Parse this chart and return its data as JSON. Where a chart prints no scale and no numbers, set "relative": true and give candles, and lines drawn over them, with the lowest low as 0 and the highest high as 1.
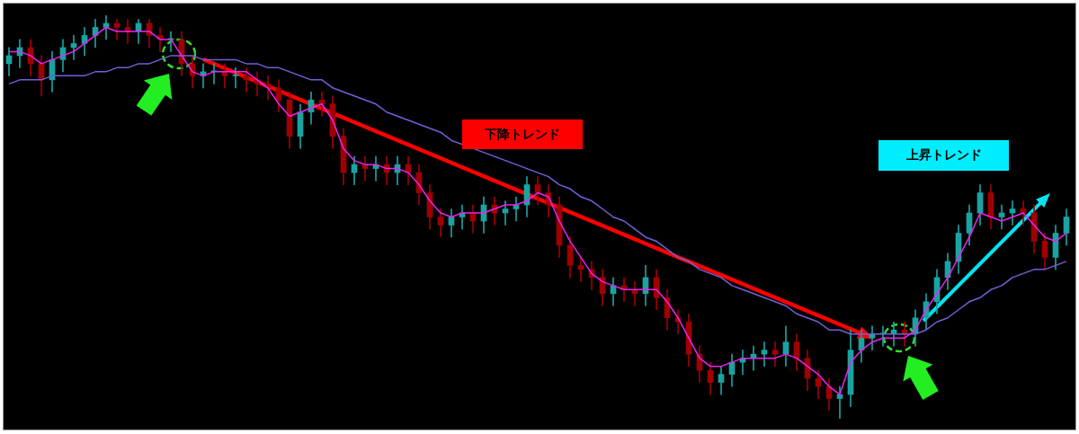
{
  "chart_data": {
    "type": "candlestick",
    "relative": true,
    "categories": [
      null,
      null,
      null,
      null,
      null,
      null,
      null,
      null,
      null,
      null,
      null,
      null,
      null,
      null,
      null,
      null,
      null,
      null,
      null,
      null,
      null,
      null,
      null,
      null,
      null,
      null,
      null,
      null,
      null,
      null,
      null,
      null,
      null,
      null,
      null,
      null,
      null,
      null,
      null,
      null,
      null,
      null,
      null,
      null,
      null,
      null,
      null,
      null,
      null,
      null,
      null,
      null,
      null,
      null,
      null,
      null,
      null,
      null,
      null,
      null,
      null,
      null,
      null,
      null,
      null,
      null,
      null,
      null,
      null,
      null,
      null,
      null,
      null,
      null,
      null,
      null,
      null,
      null,
      null,
      null,
      null,
      null,
      null,
      null,
      null,
      null,
      null,
      null,
      null,
      null,
      null,
      null,
      null,
      null,
      null,
      null,
      null,
      null,
      null
    ],
    "series": [
      {
        "type": "candlestick",
        "ohlc": [
          [
            0.88,
            0.92,
            0.85,
            0.9
          ],
          [
            0.9,
            0.94,
            0.87,
            0.92
          ],
          [
            0.92,
            0.94,
            0.85,
            0.88
          ],
          [
            0.88,
            0.9,
            0.8,
            0.84
          ],
          [
            0.84,
            0.91,
            0.81,
            0.89
          ],
          [
            0.89,
            0.94,
            0.86,
            0.92
          ],
          [
            0.92,
            0.95,
            0.89,
            0.93
          ],
          [
            0.93,
            0.97,
            0.9,
            0.95
          ],
          [
            0.95,
            0.99,
            0.92,
            0.97
          ],
          [
            0.97,
            1,
            0.94,
            0.98
          ],
          [
            0.98,
            0.99,
            0.94,
            0.97
          ],
          [
            0.97,
            0.99,
            0.93,
            0.96
          ],
          [
            0.96,
            0.99,
            0.93,
            0.98
          ],
          [
            0.98,
            0.99,
            0.92,
            0.95
          ],
          [
            0.95,
            0.97,
            0.91,
            0.94
          ],
          [
            0.94,
            0.96,
            0.91,
            0.94
          ],
          [
            0.94,
            0.96,
            0.85,
            0.88
          ],
          [
            0.88,
            0.9,
            0.82,
            0.85
          ],
          [
            0.85,
            0.88,
            0.82,
            0.86
          ],
          [
            0.86,
            0.88,
            0.83,
            0.86
          ],
          [
            0.86,
            0.88,
            0.82,
            0.85
          ],
          [
            0.85,
            0.87,
            0.82,
            0.85
          ],
          [
            0.85,
            0.87,
            0.81,
            0.84
          ],
          [
            0.84,
            0.86,
            0.8,
            0.83
          ],
          [
            0.83,
            0.85,
            0.79,
            0.82
          ],
          [
            0.82,
            0.84,
            0.76,
            0.79
          ],
          [
            0.79,
            0.81,
            0.67,
            0.7
          ],
          [
            0.7,
            0.78,
            0.67,
            0.76
          ],
          [
            0.76,
            0.81,
            0.73,
            0.79
          ],
          [
            0.79,
            0.81,
            0.75,
            0.78
          ],
          [
            0.78,
            0.8,
            0.67,
            0.7
          ],
          [
            0.7,
            0.72,
            0.58,
            0.61
          ],
          [
            0.61,
            0.65,
            0.58,
            0.63
          ],
          [
            0.63,
            0.65,
            0.59,
            0.62
          ],
          [
            0.62,
            0.65,
            0.59,
            0.63
          ],
          [
            0.63,
            0.65,
            0.58,
            0.61
          ],
          [
            0.61,
            0.65,
            0.58,
            0.63
          ],
          [
            0.63,
            0.65,
            0.58,
            0.61
          ],
          [
            0.61,
            0.63,
            0.53,
            0.56
          ],
          [
            0.56,
            0.58,
            0.47,
            0.5
          ],
          [
            0.5,
            0.52,
            0.45,
            0.48
          ],
          [
            0.48,
            0.52,
            0.45,
            0.5
          ],
          [
            0.5,
            0.53,
            0.47,
            0.51
          ],
          [
            0.51,
            0.53,
            0.46,
            0.49
          ],
          [
            0.49,
            0.55,
            0.46,
            0.53
          ],
          [
            0.53,
            0.55,
            0.48,
            0.51
          ],
          [
            0.51,
            0.54,
            0.48,
            0.52
          ],
          [
            0.52,
            0.55,
            0.49,
            0.53
          ],
          [
            0.53,
            0.6,
            0.5,
            0.58
          ],
          [
            0.58,
            0.6,
            0.53,
            0.56
          ],
          [
            0.56,
            0.58,
            0.5,
            0.53
          ],
          [
            0.53,
            0.55,
            0.4,
            0.43
          ],
          [
            0.43,
            0.45,
            0.35,
            0.38
          ],
          [
            0.38,
            0.4,
            0.34,
            0.37
          ],
          [
            0.37,
            0.39,
            0.32,
            0.35
          ],
          [
            0.35,
            0.37,
            0.28,
            0.31
          ],
          [
            0.31,
            0.35,
            0.28,
            0.33
          ],
          [
            0.33,
            0.35,
            0.29,
            0.32
          ],
          [
            0.32,
            0.34,
            0.28,
            0.31
          ],
          [
            0.31,
            0.38,
            0.28,
            0.35
          ],
          [
            0.35,
            0.37,
            0.27,
            0.3
          ],
          [
            0.3,
            0.32,
            0.22,
            0.25
          ],
          [
            0.25,
            0.27,
            0.21,
            0.24
          ],
          [
            0.24,
            0.26,
            0.13,
            0.16
          ],
          [
            0.16,
            0.18,
            0.09,
            0.12
          ],
          [
            0.12,
            0.14,
            0.06,
            0.09
          ],
          [
            0.09,
            0.13,
            0.06,
            0.11
          ],
          [
            0.11,
            0.16,
            0.08,
            0.14
          ],
          [
            0.14,
            0.17,
            0.11,
            0.15
          ],
          [
            0.15,
            0.18,
            0.12,
            0.16
          ],
          [
            0.16,
            0.19,
            0.13,
            0.17
          ],
          [
            0.17,
            0.19,
            0.13,
            0.16
          ],
          [
            0.16,
            0.23,
            0.13,
            0.19
          ],
          [
            0.19,
            0.21,
            0.12,
            0.15
          ],
          [
            0.15,
            0.17,
            0.07,
            0.1
          ],
          [
            0.1,
            0.12,
            0.05,
            0.08
          ],
          [
            0.08,
            0.1,
            0.02,
            0.05
          ],
          [
            0.05,
            0.08,
            0,
            0.06
          ],
          [
            0.06,
            0.22,
            0.03,
            0.17
          ],
          [
            0.17,
            0.22,
            0.14,
            0.2
          ],
          [
            0.2,
            0.23,
            0.17,
            0.21
          ],
          [
            0.21,
            0.23,
            0.18,
            0.21
          ],
          [
            0.21,
            0.24,
            0.18,
            0.22
          ],
          [
            0.22,
            0.24,
            0.18,
            0.21
          ],
          [
            0.21,
            0.27,
            0.18,
            0.25
          ],
          [
            0.25,
            0.31,
            0.22,
            0.29
          ],
          [
            0.29,
            0.37,
            0.26,
            0.35
          ],
          [
            0.35,
            0.41,
            0.32,
            0.39
          ],
          [
            0.39,
            0.48,
            0.36,
            0.46
          ],
          [
            0.46,
            0.53,
            0.43,
            0.51
          ],
          [
            0.51,
            0.58,
            0.48,
            0.56
          ],
          [
            0.56,
            0.58,
            0.47,
            0.5
          ],
          [
            0.5,
            0.53,
            0.47,
            0.51
          ],
          [
            0.51,
            0.54,
            0.48,
            0.52
          ],
          [
            0.52,
            0.54,
            0.48,
            0.51
          ],
          [
            0.51,
            0.53,
            0.41,
            0.44
          ],
          [
            0.44,
            0.46,
            0.37,
            0.4
          ],
          [
            0.4,
            0.48,
            0.37,
            0.46
          ],
          [
            0.46,
            0.52,
            0.43,
            0.5
          ]
        ],
        "colors": [
          "#1aa3a3",
          "#1aa3a3",
          "#a00000",
          "#a00000",
          "#1aa3a3",
          "#1aa3a3",
          "#1aa3a3",
          "#1aa3a3",
          "#1aa3a3",
          "#1aa3a3",
          "#a00000",
          "#a00000",
          "#1aa3a3",
          "#a00000",
          "#a00000",
          "#1aa3a3",
          "#a00000",
          "#a00000",
          "#1aa3a3",
          "#1aa3a3",
          "#a00000",
          "#1aa3a3",
          "#a00000",
          "#a00000",
          "#a00000",
          "#a00000",
          "#a00000",
          "#1aa3a3",
          "#1aa3a3",
          "#a00000",
          "#a00000",
          "#a00000",
          "#1aa3a3",
          "#a00000",
          "#1aa3a3",
          "#a00000",
          "#1aa3a3",
          "#a00000",
          "#a00000",
          "#a00000",
          "#a00000",
          "#1aa3a3",
          "#1aa3a3",
          "#a00000",
          "#1aa3a3",
          "#a00000",
          "#1aa3a3",
          "#1aa3a3",
          "#1aa3a3",
          "#a00000",
          "#a00000",
          "#a00000",
          "#a00000",
          "#a00000",
          "#a00000",
          "#a00000",
          "#1aa3a3",
          "#a00000",
          "#a00000",
          "#1aa3a3",
          "#a00000",
          "#a00000",
          "#a00000",
          "#a00000",
          "#a00000",
          "#a00000",
          "#1aa3a3",
          "#1aa3a3",
          "#1aa3a3",
          "#1aa3a3",
          "#1aa3a3",
          "#a00000",
          "#1aa3a3",
          "#a00000",
          "#a00000",
          "#a00000",
          "#a00000",
          "#1aa3a3",
          "#1aa3a3",
          "#1aa3a3",
          "#1aa3a3",
          "#1aa3a3",
          "#1aa3a3",
          "#a00000",
          "#1aa3a3",
          "#1aa3a3",
          "#1aa3a3",
          "#1aa3a3",
          "#1aa3a3",
          "#1aa3a3",
          "#1aa3a3",
          "#a00000",
          "#1aa3a3",
          "#1aa3a3",
          "#a00000",
          "#a00000",
          "#a00000",
          "#1aa3a3",
          "#1aa3a3"
        ]
      },
      {
        "type": "line",
        "color": "#ee22ee",
        "values": [
          0.91,
          0.91,
          0.9,
          0.88,
          0.89,
          0.9,
          0.91,
          0.93,
          0.95,
          0.97,
          0.96,
          0.96,
          0.96,
          0.96,
          0.94,
          0.94,
          0.9,
          0.86,
          0.85,
          0.86,
          0.86,
          0.86,
          0.86,
          0.84,
          0.82,
          0.78,
          0.75,
          0.76,
          0.77,
          0.78,
          0.74,
          0.67,
          0.64,
          0.63,
          0.63,
          0.62,
          0.62,
          0.61,
          0.58,
          0.54,
          0.51,
          0.5,
          0.51,
          0.51,
          0.51,
          0.52,
          0.53,
          0.53,
          0.54,
          0.56,
          0.55,
          0.49,
          0.44,
          0.4,
          0.36,
          0.34,
          0.33,
          0.32,
          0.32,
          0.32,
          0.32,
          0.29,
          0.25,
          0.2,
          0.15,
          0.13,
          0.13,
          0.14,
          0.15,
          0.15,
          0.15,
          0.15,
          0.16,
          0.15,
          0.13,
          0.11,
          0.08,
          0.06,
          0.14,
          0.17,
          0.19,
          0.2,
          0.2,
          0.2,
          0.22,
          0.27,
          0.31,
          0.35,
          0.4,
          0.45,
          0.51,
          0.5,
          0.49,
          0.5,
          0.51,
          0.48,
          0.45,
          0.44,
          0.46
        ]
      },
      {
        "type": "line",
        "color": "#7060d8",
        "values": [
          0.83,
          0.84,
          0.84,
          0.84,
          0.85,
          0.85,
          0.85,
          0.85,
          0.86,
          0.86,
          0.87,
          0.87,
          0.88,
          0.88,
          0.89,
          0.9,
          0.9,
          0.9,
          0.89,
          0.89,
          0.89,
          0.89,
          0.88,
          0.88,
          0.87,
          0.87,
          0.86,
          0.85,
          0.84,
          0.84,
          0.82,
          0.81,
          0.8,
          0.79,
          0.78,
          0.76,
          0.75,
          0.74,
          0.73,
          0.72,
          0.71,
          0.69,
          0.68,
          0.67,
          0.66,
          0.65,
          0.64,
          0.63,
          0.62,
          0.61,
          0.6,
          0.58,
          0.57,
          0.55,
          0.54,
          0.52,
          0.5,
          0.49,
          0.47,
          0.45,
          0.44,
          0.42,
          0.4,
          0.39,
          0.37,
          0.36,
          0.35,
          0.33,
          0.32,
          0.31,
          0.3,
          0.29,
          0.28,
          0.26,
          0.25,
          0.24,
          0.22,
          0.22,
          0.21,
          0.21,
          0.21,
          0.21,
          0.21,
          0.21,
          0.21,
          0.22,
          0.24,
          0.25,
          0.27,
          0.29,
          0.3,
          0.32,
          0.33,
          0.35,
          0.36,
          0.37,
          0.37,
          0.38,
          0.39
        ]
      }
    ],
    "annotations": [
      "下降トレンド",
      "上昇トレンド"
    ]
  }
}
